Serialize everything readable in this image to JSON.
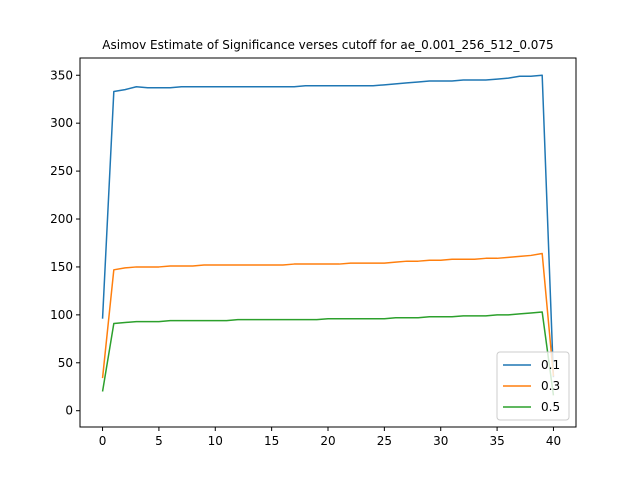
{
  "chart_data": {
    "type": "line",
    "title": "Asimov Estimate of Significance verses cutoff for ae_0.001_256_512_0.075",
    "xlabel": "",
    "ylabel": "",
    "xlim": [
      -2,
      42
    ],
    "ylim": [
      -17,
      368
    ],
    "xticks": [
      0,
      5,
      10,
      15,
      20,
      25,
      30,
      35,
      40
    ],
    "yticks": [
      0,
      50,
      100,
      150,
      200,
      250,
      300,
      350
    ],
    "grid": false,
    "legend_position": "lower-right",
    "x": [
      0,
      1,
      2,
      3,
      4,
      5,
      6,
      7,
      8,
      9,
      10,
      11,
      12,
      13,
      14,
      15,
      16,
      17,
      18,
      19,
      20,
      21,
      22,
      23,
      24,
      25,
      26,
      27,
      28,
      29,
      30,
      31,
      32,
      33,
      34,
      35,
      36,
      37,
      38,
      39,
      40
    ],
    "series": [
      {
        "name": "0.1",
        "color": "#1f77b4",
        "values": [
          96,
          333,
          335,
          338,
          337,
          337,
          337,
          338,
          338,
          338,
          338,
          338,
          338,
          338,
          338,
          338,
          338,
          338,
          339,
          339,
          339,
          339,
          339,
          339,
          339,
          340,
          341,
          342,
          343,
          344,
          344,
          344,
          345,
          345,
          345,
          346,
          347,
          349,
          349,
          350,
          35
        ]
      },
      {
        "name": "0.3",
        "color": "#ff7f0e",
        "values": [
          34,
          147,
          149,
          150,
          150,
          150,
          151,
          151,
          151,
          152,
          152,
          152,
          152,
          152,
          152,
          152,
          152,
          153,
          153,
          153,
          153,
          153,
          154,
          154,
          154,
          154,
          155,
          156,
          156,
          157,
          157,
          158,
          158,
          158,
          159,
          159,
          160,
          161,
          162,
          164,
          36
        ]
      },
      {
        "name": "0.5",
        "color": "#2ca02c",
        "values": [
          20,
          91,
          92,
          93,
          93,
          93,
          94,
          94,
          94,
          94,
          94,
          94,
          95,
          95,
          95,
          95,
          95,
          95,
          95,
          95,
          96,
          96,
          96,
          96,
          96,
          96,
          97,
          97,
          97,
          98,
          98,
          98,
          99,
          99,
          99,
          100,
          100,
          101,
          102,
          103,
          16
        ]
      }
    ]
  }
}
